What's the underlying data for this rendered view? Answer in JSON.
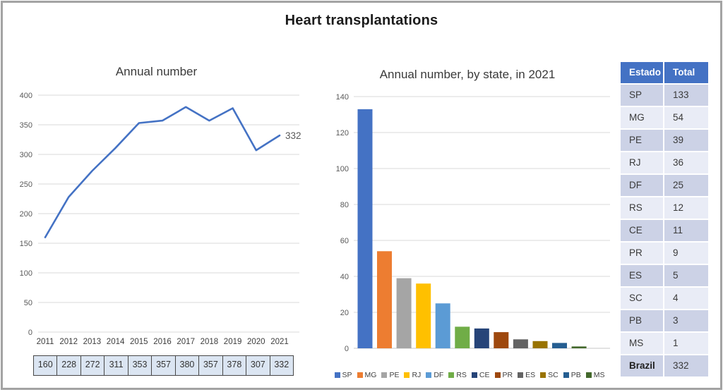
{
  "title": "Heart transplantations",
  "chart_data": [
    {
      "type": "line",
      "title": "Annual number",
      "x": [
        "2011",
        "2012",
        "2013",
        "2014",
        "2015",
        "2016",
        "2017",
        "2018",
        "2019",
        "2020",
        "2021"
      ],
      "values": [
        160,
        228,
        272,
        311,
        353,
        357,
        380,
        357,
        378,
        307,
        332
      ],
      "xlabel": "",
      "ylabel": "",
      "ylim": [
        0,
        400
      ],
      "ytick_step": 50,
      "grid": true,
      "legend_position": "none",
      "end_label": "332",
      "color": "#4472C4"
    },
    {
      "type": "bar",
      "title": "Annual number, by state, in 2021",
      "categories": [
        "SP",
        "MG",
        "PE",
        "RJ",
        "DF",
        "RS",
        "CE",
        "PR",
        "ES",
        "SC",
        "PB",
        "MS"
      ],
      "values": [
        133,
        54,
        39,
        36,
        25,
        12,
        11,
        9,
        5,
        4,
        3,
        1
      ],
      "colors": [
        "#4472C4",
        "#ED7D31",
        "#A5A5A5",
        "#FFC000",
        "#5B9BD5",
        "#70AD47",
        "#264478",
        "#9E480E",
        "#636363",
        "#997300",
        "#255E91",
        "#43682B"
      ],
      "xlabel": "",
      "ylabel": "",
      "ylim": [
        0,
        140
      ],
      "ytick_step": 20,
      "grid": true,
      "legend_position": "bottom"
    }
  ],
  "annual_values_row": [
    160,
    228,
    272,
    311,
    353,
    357,
    380,
    357,
    378,
    307,
    332
  ],
  "state_table": {
    "headers": [
      "Estado",
      "Total"
    ],
    "rows": [
      [
        "SP",
        "133"
      ],
      [
        "MG",
        "54"
      ],
      [
        "PE",
        "39"
      ],
      [
        "RJ",
        "36"
      ],
      [
        "DF",
        "25"
      ],
      [
        "RS",
        "12"
      ],
      [
        "CE",
        "11"
      ],
      [
        "PR",
        "9"
      ],
      [
        "ES",
        "5"
      ],
      [
        "SC",
        "4"
      ],
      [
        "PB",
        "3"
      ],
      [
        "MS",
        "1"
      ]
    ],
    "total_row": [
      "Brazil",
      "332"
    ],
    "header_bg": "#4472C4",
    "row_dark": "#ccd2e6",
    "row_light": "#e9ecf6"
  },
  "colors": {
    "grid": "#d9d9d9",
    "axis_text": "#595959",
    "table_cell_bg": "#dbe5f2",
    "table_cell_border": "#474747",
    "frame_border": "#a3a3a3"
  }
}
